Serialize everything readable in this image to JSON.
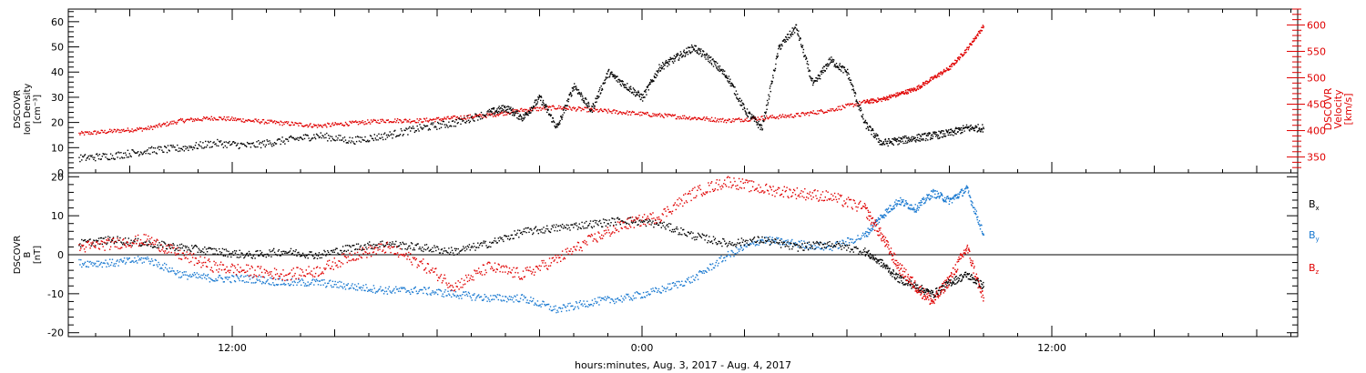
{
  "chart_data": [
    {
      "type": "scatter",
      "panel": "top",
      "ylabel_left": [
        "DSCOVR",
        "Ion Density",
        "[cm⁻³]"
      ],
      "ylabel_right": [
        "DSCOVR",
        "Velocity",
        "[km/s]"
      ],
      "ylim_left": [
        0,
        65
      ],
      "ylim_right": [
        320,
        630
      ],
      "yticks_left": [
        "0",
        "10",
        "20",
        "30",
        "40",
        "50",
        "60"
      ],
      "yticks_right": [
        "350",
        "400",
        "450",
        "500",
        "550",
        "600"
      ],
      "colors": {
        "density": "#000000",
        "velocity": "#e00000"
      },
      "series": [
        {
          "name": "Ion Density",
          "axis": "left",
          "color": "#000000",
          "x": [
            7.5,
            8.5,
            9.5,
            10.5,
            11.5,
            12.5,
            13.5,
            14.5,
            15.5,
            16.5,
            17.5,
            18.5,
            19.5,
            20.0,
            20.5,
            21.0,
            21.5,
            22.0,
            22.5,
            23.0,
            23.5,
            24.0,
            24.5,
            25.0,
            25.5,
            26.0,
            26.5,
            27.0,
            27.5,
            28.0,
            28.5,
            29.0,
            29.5,
            30.0,
            30.5,
            31.0,
            31.5,
            32.0,
            32.5,
            33.0,
            33.5,
            34.0
          ],
          "y": [
            6,
            7,
            9,
            10,
            12,
            11,
            13,
            15,
            13,
            15,
            18,
            20,
            24,
            26,
            22,
            30,
            18,
            35,
            25,
            40,
            35,
            30,
            42,
            46,
            50,
            45,
            38,
            25,
            18,
            50,
            58,
            35,
            45,
            40,
            20,
            12,
            13,
            14,
            15,
            16,
            18,
            18
          ]
        },
        {
          "name": "Velocity",
          "axis": "right",
          "color": "#e00000",
          "x": [
            7.5,
            8.5,
            9.5,
            10.5,
            11.5,
            12.5,
            13.5,
            14.5,
            15.5,
            16.5,
            17.5,
            18.5,
            19.5,
            20.5,
            21.5,
            22.5,
            23.5,
            24.5,
            25.5,
            26.5,
            27.5,
            28.5,
            29.5,
            30.5,
            31.0,
            31.5,
            32.0,
            32.5,
            33.0,
            33.5,
            34.0
          ],
          "y": [
            395,
            400,
            405,
            420,
            425,
            420,
            415,
            410,
            415,
            420,
            420,
            425,
            430,
            440,
            445,
            440,
            435,
            430,
            425,
            420,
            425,
            430,
            440,
            455,
            460,
            470,
            480,
            500,
            520,
            555,
            600
          ]
        }
      ]
    },
    {
      "type": "scatter",
      "panel": "bottom",
      "ylabel": [
        "DSCOVR",
        "B",
        "[nT]"
      ],
      "ylim": [
        -21,
        21
      ],
      "yticks": [
        "-20",
        "-10",
        "0",
        "10",
        "20"
      ],
      "xlabel": "hours:minutes, Aug.  3, 2017 - Aug.  4, 2017",
      "xtick_labels": [
        "12:00",
        "0:00",
        "12:00"
      ],
      "xtick_hours": [
        12,
        24,
        36
      ],
      "xlim": [
        7.2,
        43.2
      ],
      "legend": [
        "B",
        "B",
        "B"
      ],
      "legend_sub": [
        "x",
        "y",
        "z"
      ],
      "colors": {
        "bx": "#000000",
        "by": "#1878d0",
        "bz": "#e00000"
      },
      "series": [
        {
          "name": "Bx",
          "color": "#000000",
          "x": [
            7.5,
            8.5,
            9.5,
            10.5,
            11.5,
            12.5,
            13.5,
            14.5,
            15.5,
            16.5,
            17.5,
            18.5,
            19.5,
            20.5,
            21.5,
            22.5,
            23.5,
            24.5,
            25.5,
            26.5,
            27.5,
            28.5,
            29.5,
            30.5,
            31.0,
            31.5,
            32.0,
            32.5,
            33.0,
            33.5,
            34.0
          ],
          "y": [
            3,
            4,
            3,
            2,
            1,
            0,
            1,
            0,
            2,
            3,
            2,
            1,
            3,
            6,
            7,
            8,
            9,
            8,
            5,
            3,
            4,
            2,
            3,
            1,
            -2,
            -6,
            -8,
            -10,
            -7,
            -5,
            -8
          ]
        },
        {
          "name": "By",
          "color": "#1878d0",
          "x": [
            7.5,
            8.5,
            9.5,
            10.5,
            11.5,
            12.5,
            13.5,
            14.5,
            15.5,
            16.5,
            17.5,
            18.5,
            19.5,
            20.5,
            21.5,
            22.5,
            23.5,
            24.5,
            25.5,
            26.5,
            27.5,
            28.5,
            29.5,
            30.5,
            31.0,
            31.5,
            32.0,
            32.5,
            33.0,
            33.5,
            34.0
          ],
          "y": [
            -2,
            -2,
            -1,
            -5,
            -6,
            -6,
            -7,
            -7,
            -8,
            -9,
            -9,
            -10,
            -11,
            -11,
            -14,
            -12,
            -11,
            -9,
            -6,
            0,
            4,
            3,
            2,
            5,
            10,
            14,
            12,
            16,
            14,
            17,
            5
          ]
        },
        {
          "name": "Bz",
          "color": "#e00000",
          "x": [
            7.5,
            8.5,
            9.5,
            10.5,
            11.5,
            12.5,
            13.5,
            14.5,
            15.5,
            16.5,
            17.5,
            18.5,
            19.5,
            20.5,
            21.5,
            22.5,
            23.5,
            24.5,
            25.5,
            26.5,
            27.5,
            28.5,
            29.5,
            30.5,
            31.0,
            31.5,
            32.0,
            32.5,
            33.0,
            33.5,
            34.0
          ],
          "y": [
            2,
            3,
            4,
            0,
            -3,
            -4,
            -5,
            -4,
            0,
            2,
            -2,
            -8,
            -3,
            -5,
            -1,
            4,
            8,
            10,
            16,
            19,
            17,
            16,
            15,
            12,
            5,
            -3,
            -8,
            -12,
            -6,
            2,
            -12
          ]
        }
      ]
    }
  ]
}
